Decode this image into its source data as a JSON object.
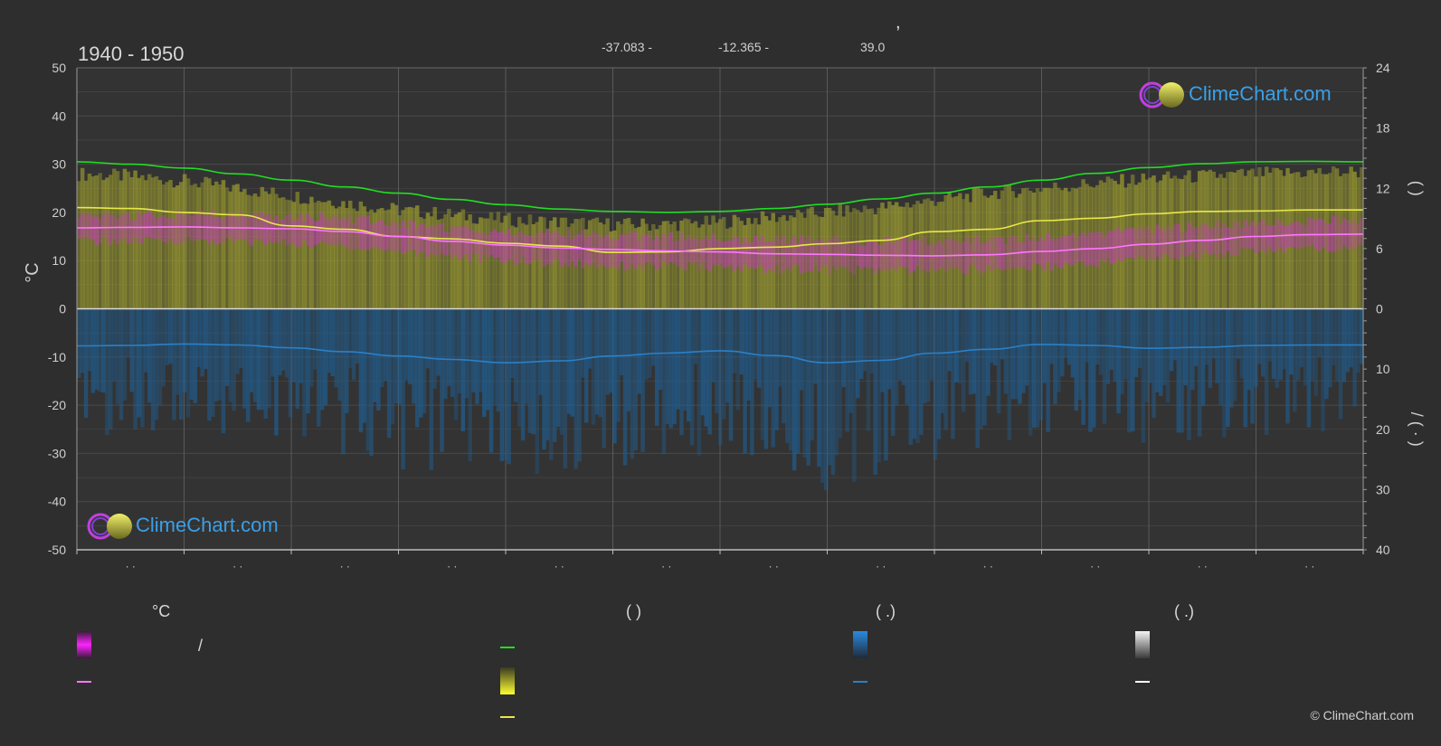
{
  "header": {
    "title_comma": ",",
    "period": "1940 - 1950",
    "coords": [
      "-37.083 -",
      "-12.365 -",
      "39.0"
    ]
  },
  "brand": {
    "name": "ClimeChart.com",
    "copyright": "© ClimeChart.com"
  },
  "axes": {
    "y_left_label": "°C",
    "y_right_top_label": "(      )",
    "y_right_bottom_label": "/      (  ·  )"
  },
  "legend": {
    "headers": [
      "°C",
      "(            )",
      "(    .)",
      "(    .)"
    ],
    "slash": "/"
  },
  "colors": {
    "background": "#2e2e2e",
    "daylight": "#22dd22",
    "sunshine": "#e8e84a",
    "temp_range": "#dd22dd",
    "temp_mean": "#ff77ff",
    "precip": "#2a80c8",
    "brand_blue": "#3aa0e8"
  },
  "chart_data": {
    "type": "line",
    "title": "1940 - 1950",
    "ylabel": "°C",
    "ylim": [
      -50,
      50
    ],
    "y2_top_range": [
      0,
      24
    ],
    "y2_bottom_range": [
      0,
      40
    ],
    "x_ticks": [
      "· ·",
      "· ·",
      "· ·",
      "· ·",
      "· ·",
      "· ·",
      "· ·",
      "· ·",
      "· ·",
      "· ·",
      "· ·",
      "· ·"
    ],
    "y_ticks": [
      50,
      40,
      30,
      20,
      10,
      0,
      -10,
      -20,
      -30,
      -40,
      -50
    ],
    "y2_top_ticks": [
      24,
      18,
      12,
      6,
      0
    ],
    "y2_bottom_ticks": [
      10,
      20,
      30,
      40
    ],
    "grid": true,
    "x": [
      0.0,
      0.5,
      1.0,
      1.5,
      2.0,
      2.5,
      3.0,
      3.5,
      4.0,
      4.5,
      5.0,
      5.5,
      6.0,
      6.5,
      7.0,
      7.5,
      8.0,
      8.5,
      9.0,
      9.5,
      10.0,
      10.5,
      11.0,
      11.5,
      12.0
    ],
    "series": [
      {
        "key": "daylight",
        "axis": "left",
        "values": [
          30.5,
          30.0,
          29.2,
          28.0,
          26.7,
          25.3,
          24.0,
          22.7,
          21.6,
          20.7,
          20.2,
          20.0,
          20.2,
          20.8,
          21.7,
          22.8,
          24.0,
          25.3,
          26.7,
          28.1,
          29.3,
          30.1,
          30.5,
          30.6,
          30.5
        ]
      },
      {
        "key": "sunshine",
        "axis": "left",
        "values": [
          21.0,
          20.8,
          20.0,
          19.5,
          17.2,
          16.5,
          15.0,
          14.5,
          13.6,
          13.0,
          11.7,
          11.8,
          12.5,
          12.8,
          13.5,
          14.2,
          16.0,
          16.5,
          18.3,
          18.8,
          19.7,
          20.2,
          20.3,
          20.5,
          20.5
        ]
      },
      {
        "key": "temp_mean",
        "axis": "left",
        "values": [
          16.8,
          16.9,
          17.0,
          16.8,
          16.6,
          16.0,
          15.0,
          14.0,
          13.2,
          12.6,
          12.3,
          12.0,
          11.8,
          11.4,
          11.3,
          11.1,
          11.0,
          11.2,
          11.9,
          12.5,
          13.4,
          14.2,
          15.0,
          15.4,
          15.5
        ]
      },
      {
        "key": "precip_mean",
        "axis": "left",
        "values": [
          -7.7,
          -7.6,
          -7.3,
          -7.5,
          -8.1,
          -8.9,
          -9.8,
          -10.5,
          -11.2,
          -10.8,
          -9.8,
          -9.2,
          -8.7,
          -9.7,
          -11.2,
          -10.7,
          -9.2,
          -8.4,
          -7.4,
          -7.6,
          -8.2,
          -8.0,
          -7.6,
          -7.5,
          -7.5
        ]
      },
      {
        "key": "sunshine_band_top",
        "axis": "left",
        "values": [
          28.0,
          27.5,
          26.5,
          25.0,
          23.5,
          22.0,
          20.5,
          19.5,
          18.5,
          18.0,
          17.5,
          17.5,
          18.0,
          19.0,
          20.0,
          21.0,
          22.5,
          24.0,
          25.0,
          26.0,
          27.0,
          27.5,
          28.0,
          28.3,
          28.5
        ]
      },
      {
        "key": "temp_band_low",
        "axis": "left",
        "values": [
          14.0,
          14.0,
          14.2,
          14.0,
          13.6,
          13.0,
          12.0,
          11.0,
          10.0,
          9.5,
          9.0,
          8.8,
          8.6,
          8.3,
          8.2,
          8.0,
          8.0,
          8.2,
          8.8,
          9.5,
          10.5,
          11.3,
          12.0,
          12.5,
          12.6
        ]
      },
      {
        "key": "temp_band_high",
        "axis": "left",
        "values": [
          19.0,
          19.3,
          19.6,
          19.5,
          19.3,
          18.8,
          17.8,
          16.8,
          16.0,
          15.5,
          15.2,
          15.0,
          14.8,
          14.4,
          14.2,
          14.0,
          14.0,
          14.2,
          14.8,
          15.5,
          16.5,
          17.2,
          17.8,
          18.2,
          18.4
        ]
      }
    ]
  }
}
